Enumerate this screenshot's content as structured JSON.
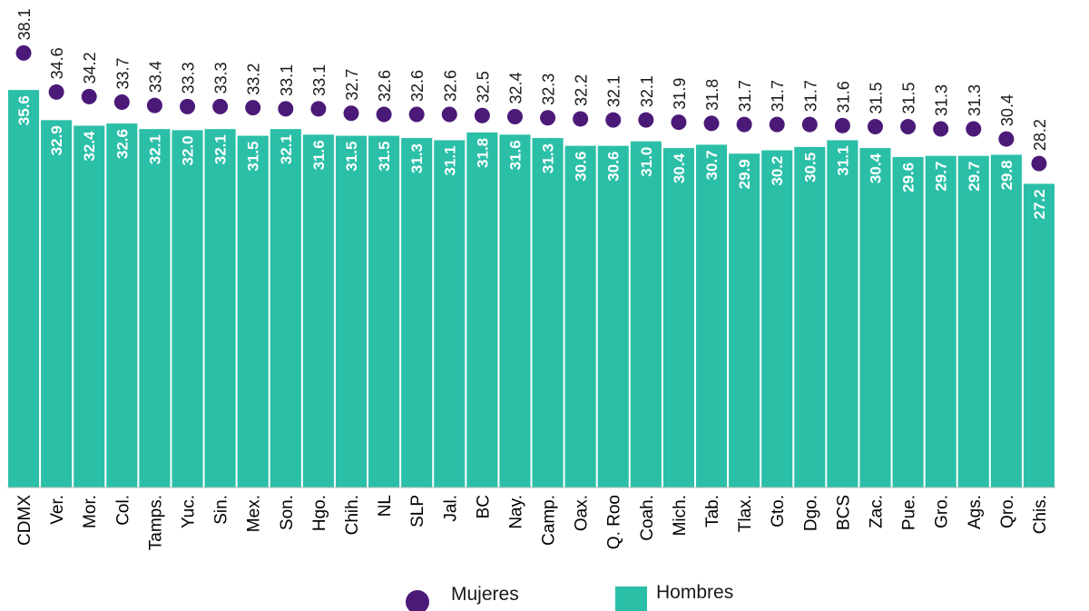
{
  "chart_data": {
    "type": "bar",
    "categories": [
      "CDMX",
      "Ver.",
      "Mor.",
      "Col.",
      "Tamps.",
      "Yuc.",
      "Sin.",
      "Mex.",
      "Son.",
      "Hgo.",
      "Chih.",
      "NL",
      "SLP",
      "Jal.",
      "BC",
      "Nay.",
      "Camp.",
      "Oax.",
      "Q. Roo",
      "Coah.",
      "Mich.",
      "Tab.",
      "Tlax.",
      "Gto.",
      "Dgo.",
      "BCS",
      "Zac.",
      "Pue.",
      "Gro.",
      "Ags.",
      "Qro.",
      "Chis."
    ],
    "series": [
      {
        "name": "Hombres",
        "render": "bar",
        "color": "#2bbfa8",
        "values": [
          35.6,
          32.9,
          32.4,
          32.6,
          32.1,
          32.0,
          32.1,
          31.5,
          32.1,
          31.6,
          31.5,
          31.5,
          31.3,
          31.1,
          31.8,
          31.6,
          31.3,
          30.6,
          30.6,
          31.0,
          30.4,
          30.7,
          29.9,
          30.2,
          30.5,
          31.1,
          30.4,
          29.6,
          29.7,
          29.7,
          29.8,
          27.2
        ]
      },
      {
        "name": "Mujeres",
        "render": "point",
        "color": "#4b1a78",
        "values": [
          38.1,
          34.6,
          34.2,
          33.7,
          33.4,
          33.3,
          33.3,
          33.2,
          33.1,
          33.1,
          32.7,
          32.6,
          32.6,
          32.6,
          32.5,
          32.4,
          32.3,
          32.2,
          32.1,
          32.1,
          31.9,
          31.8,
          31.7,
          31.7,
          31.7,
          31.6,
          31.5,
          31.5,
          31.3,
          31.3,
          30.4,
          28.2
        ]
      }
    ],
    "legend": {
      "placement": "bottom",
      "items": [
        {
          "label": "Mujeres",
          "sub_label": "",
          "marker": "circle",
          "color": "#4b1a78"
        },
        {
          "label": "Hombres",
          "sub_label": "",
          "marker": "square",
          "color": "#2bbfa8"
        }
      ]
    },
    "title": "",
    "xlabel": "",
    "ylabel": "",
    "grid": false
  }
}
